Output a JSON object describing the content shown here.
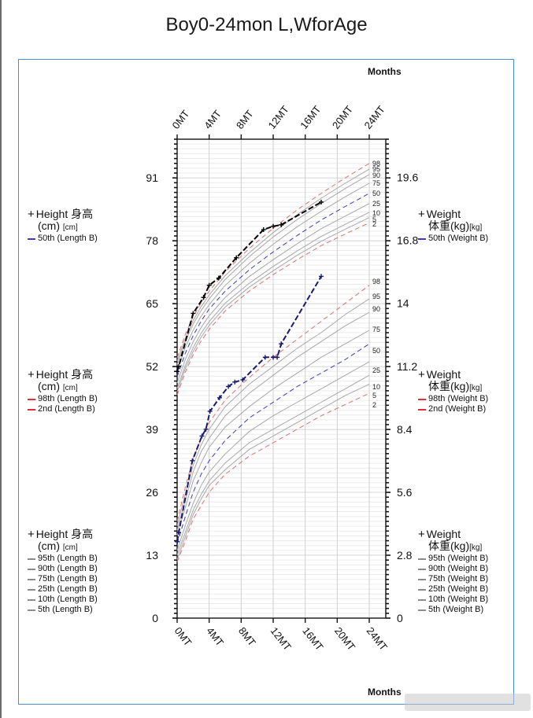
{
  "title": "Boy0-24mon L,WforAge",
  "axis_label_top": "Months",
  "axis_label_bottom": "Months",
  "legends": {
    "left_top": {
      "head": "Height 身高",
      "unit_line": "(cm)",
      "unit": "[cm]",
      "items": [
        {
          "label": "50th (Length B)",
          "color": "#3b3bbf",
          "style": "dashed"
        }
      ]
    },
    "left_mid": {
      "head": "Height 身高",
      "unit_line": "(cm)",
      "unit": "[cm]",
      "items": [
        {
          "label": "98th (Length B)",
          "color": "#e03030",
          "style": "dashed"
        },
        {
          "label": "2nd (Length B)",
          "color": "#e03030",
          "style": "dashed"
        }
      ]
    },
    "left_bot": {
      "head": "Height 身高",
      "unit_line": "(cm)",
      "unit": "[cm]",
      "items": [
        {
          "label": "95th (Length B)",
          "color": "#8c8c8c",
          "style": "solid"
        },
        {
          "label": "90th (Length B)",
          "color": "#8c8c8c",
          "style": "solid"
        },
        {
          "label": "75th (Length B)",
          "color": "#8c8c8c",
          "style": "solid"
        },
        {
          "label": "25th (Length B)",
          "color": "#8c8c8c",
          "style": "solid"
        },
        {
          "label": "10th (Length B)",
          "color": "#8c8c8c",
          "style": "solid"
        },
        {
          "label": "5th (Length B)",
          "color": "#8c8c8c",
          "style": "solid"
        }
      ]
    },
    "right_top": {
      "head": "Weight",
      "unit_line": "体重(kg)",
      "unit": "[kg]",
      "items": [
        {
          "label": "50th (Weight B)",
          "color": "#3b3bbf",
          "style": "dashed"
        }
      ]
    },
    "right_mid": {
      "head": "Weight",
      "unit_line": "体重(kg)",
      "unit": "[kg]",
      "items": [
        {
          "label": "98th (Weight B)",
          "color": "#e03030",
          "style": "dashed"
        },
        {
          "label": "2nd (Weight B)",
          "color": "#e03030",
          "style": "dashed"
        }
      ]
    },
    "right_bot": {
      "head": "Weight",
      "unit_line": "体重(kg)",
      "unit": "[kg]",
      "items": [
        {
          "label": "95th (Weight B)",
          "color": "#8c8c8c",
          "style": "solid"
        },
        {
          "label": "90th (Weight B)",
          "color": "#8c8c8c",
          "style": "solid"
        },
        {
          "label": "75th (Weight B)",
          "color": "#8c8c8c",
          "style": "solid"
        },
        {
          "label": "25th (Weight B)",
          "color": "#8c8c8c",
          "style": "solid"
        },
        {
          "label": "10th (Weight B)",
          "color": "#8c8c8c",
          "style": "solid"
        },
        {
          "label": "5th (Weight B)",
          "color": "#8c8c8c",
          "style": "solid"
        }
      ]
    }
  },
  "chart_data": {
    "type": "line",
    "title": "Boy0-24mon L,WforAge",
    "xlabel": "Months",
    "x_ticks": [
      "0MT",
      "4MT",
      "8MT",
      "12MT",
      "16MT",
      "20MT",
      "24MT"
    ],
    "x_tick_values": [
      0,
      4,
      8,
      12,
      16,
      20,
      24
    ],
    "xlim": [
      0,
      24
    ],
    "left_axis": {
      "unit": "cm",
      "ticks": [
        0,
        13,
        26,
        39,
        52,
        65,
        78,
        91
      ],
      "ylim": [
        0,
        99
      ]
    },
    "right_axis": {
      "unit": "kg",
      "ticks": [
        0,
        2.8,
        5.6,
        8.4,
        11.2,
        14,
        16.8,
        19.6
      ],
      "ylim": [
        0,
        21.3
      ]
    },
    "grid": true,
    "colors": {
      "percentile": "#a8a8a8",
      "median": "#3b3bbf",
      "extreme": "#e07070",
      "patient": "#000000",
      "patient_weight": "#1a1a6e"
    },
    "length_percentiles": {
      "x": [
        0,
        1,
        2,
        3,
        4,
        6,
        9,
        12,
        15,
        18,
        21,
        24
      ],
      "series": [
        {
          "name": "98",
          "kind": "extreme",
          "values": [
            53.8,
            58.6,
            62.3,
            65.2,
            67.6,
            71.6,
            76.4,
            80.6,
            84.4,
            87.8,
            91.0,
            94.0
          ]
        },
        {
          "name": "95",
          "kind": "percentile",
          "values": [
            53.1,
            57.8,
            61.5,
            64.4,
            66.8,
            70.8,
            75.5,
            79.7,
            83.4,
            86.8,
            89.9,
            92.8
          ]
        },
        {
          "name": "90",
          "kind": "percentile",
          "values": [
            52.4,
            57.1,
            60.8,
            63.6,
            66.0,
            70.0,
            74.7,
            78.8,
            82.4,
            85.7,
            88.8,
            91.7
          ]
        },
        {
          "name": "75",
          "kind": "percentile",
          "values": [
            51.2,
            55.9,
            59.5,
            62.4,
            64.8,
            68.8,
            73.3,
            77.3,
            80.9,
            84.1,
            87.1,
            89.9
          ]
        },
        {
          "name": "50",
          "kind": "median",
          "values": [
            49.9,
            54.7,
            58.4,
            61.4,
            63.9,
            67.6,
            72.0,
            75.7,
            79.1,
            82.3,
            85.1,
            87.8
          ]
        },
        {
          "name": "25",
          "kind": "percentile",
          "values": [
            48.6,
            53.4,
            57.1,
            60.1,
            62.5,
            66.3,
            70.6,
            74.1,
            77.4,
            80.5,
            83.1,
            85.7
          ]
        },
        {
          "name": "10",
          "kind": "percentile",
          "values": [
            47.5,
            52.2,
            55.9,
            58.9,
            61.3,
            65.1,
            69.2,
            72.7,
            75.9,
            78.9,
            81.4,
            83.9
          ]
        },
        {
          "name": "5",
          "kind": "percentile",
          "values": [
            46.8,
            51.5,
            55.1,
            58.1,
            60.5,
            64.3,
            68.4,
            71.8,
            75.0,
            77.9,
            80.4,
            82.8
          ]
        },
        {
          "name": "2",
          "kind": "extreme",
          "values": [
            46.1,
            50.8,
            54.4,
            57.3,
            59.7,
            63.5,
            67.6,
            71.0,
            74.1,
            77.0,
            79.4,
            81.7
          ]
        }
      ]
    },
    "weight_percentiles": {
      "x": [
        0,
        1,
        2,
        3,
        4,
        6,
        9,
        12,
        15,
        18,
        21,
        24
      ],
      "series": [
        {
          "name": "98",
          "kind": "extreme",
          "values": [
            4.3,
            5.8,
            7.1,
            8.0,
            8.7,
            9.7,
            10.7,
            11.6,
            12.4,
            13.2,
            14.0,
            14.8
          ]
        },
        {
          "name": "95",
          "kind": "percentile",
          "values": [
            4.1,
            5.5,
            6.8,
            7.7,
            8.4,
            9.4,
            10.4,
            11.2,
            12.0,
            12.7,
            13.5,
            14.2
          ]
        },
        {
          "name": "90",
          "kind": "percentile",
          "values": [
            3.9,
            5.2,
            6.5,
            7.4,
            8.0,
            9.0,
            10.0,
            10.8,
            11.6,
            12.3,
            13.0,
            13.6
          ]
        },
        {
          "name": "75",
          "kind": "percentile",
          "values": [
            3.7,
            4.9,
            6.1,
            6.9,
            7.6,
            8.5,
            9.4,
            10.2,
            10.9,
            11.6,
            12.2,
            12.8
          ]
        },
        {
          "name": "50",
          "kind": "median",
          "values": [
            3.3,
            4.5,
            5.6,
            6.4,
            7.0,
            7.9,
            8.9,
            9.6,
            10.3,
            10.9,
            11.5,
            12.2
          ]
        },
        {
          "name": "25",
          "kind": "percentile",
          "values": [
            3.0,
            4.1,
            5.1,
            5.9,
            6.5,
            7.3,
            8.3,
            9.0,
            9.6,
            10.2,
            10.8,
            11.4
          ]
        },
        {
          "name": "10",
          "kind": "percentile",
          "values": [
            2.8,
            3.8,
            4.8,
            5.5,
            6.1,
            6.9,
            7.8,
            8.4,
            9.0,
            9.6,
            10.2,
            10.8
          ]
        },
        {
          "name": "5",
          "kind": "percentile",
          "values": [
            2.6,
            3.6,
            4.6,
            5.3,
            5.9,
            6.6,
            7.5,
            8.1,
            8.7,
            9.3,
            9.9,
            10.4
          ]
        },
        {
          "name": "2",
          "kind": "extreme",
          "values": [
            2.5,
            3.4,
            4.4,
            5.0,
            5.6,
            6.4,
            7.2,
            7.8,
            8.4,
            9.0,
            9.5,
            10.0
          ]
        }
      ]
    },
    "patient_length": {
      "x": [
        0,
        0.2,
        2.0,
        3.3,
        4.0,
        5.2,
        7.4,
        10.8,
        12.0,
        13.0,
        18.0
      ],
      "values": [
        51.0,
        52.0,
        63.0,
        66.3,
        68.8,
        70.3,
        74.5,
        80.3,
        81.0,
        81.3,
        86.0
      ]
    },
    "patient_weight": {
      "x": [
        0,
        0.2,
        1.9,
        3.1,
        3.6,
        4.1,
        5.3,
        6.4,
        7.2,
        8.2,
        11.0,
        12.0,
        12.5,
        13.0,
        18.0
      ],
      "values": [
        3.4,
        3.8,
        7.0,
        8.1,
        8.4,
        9.2,
        9.8,
        10.3,
        10.5,
        10.6,
        11.6,
        11.6,
        11.6,
        12.2,
        15.2
      ]
    }
  }
}
